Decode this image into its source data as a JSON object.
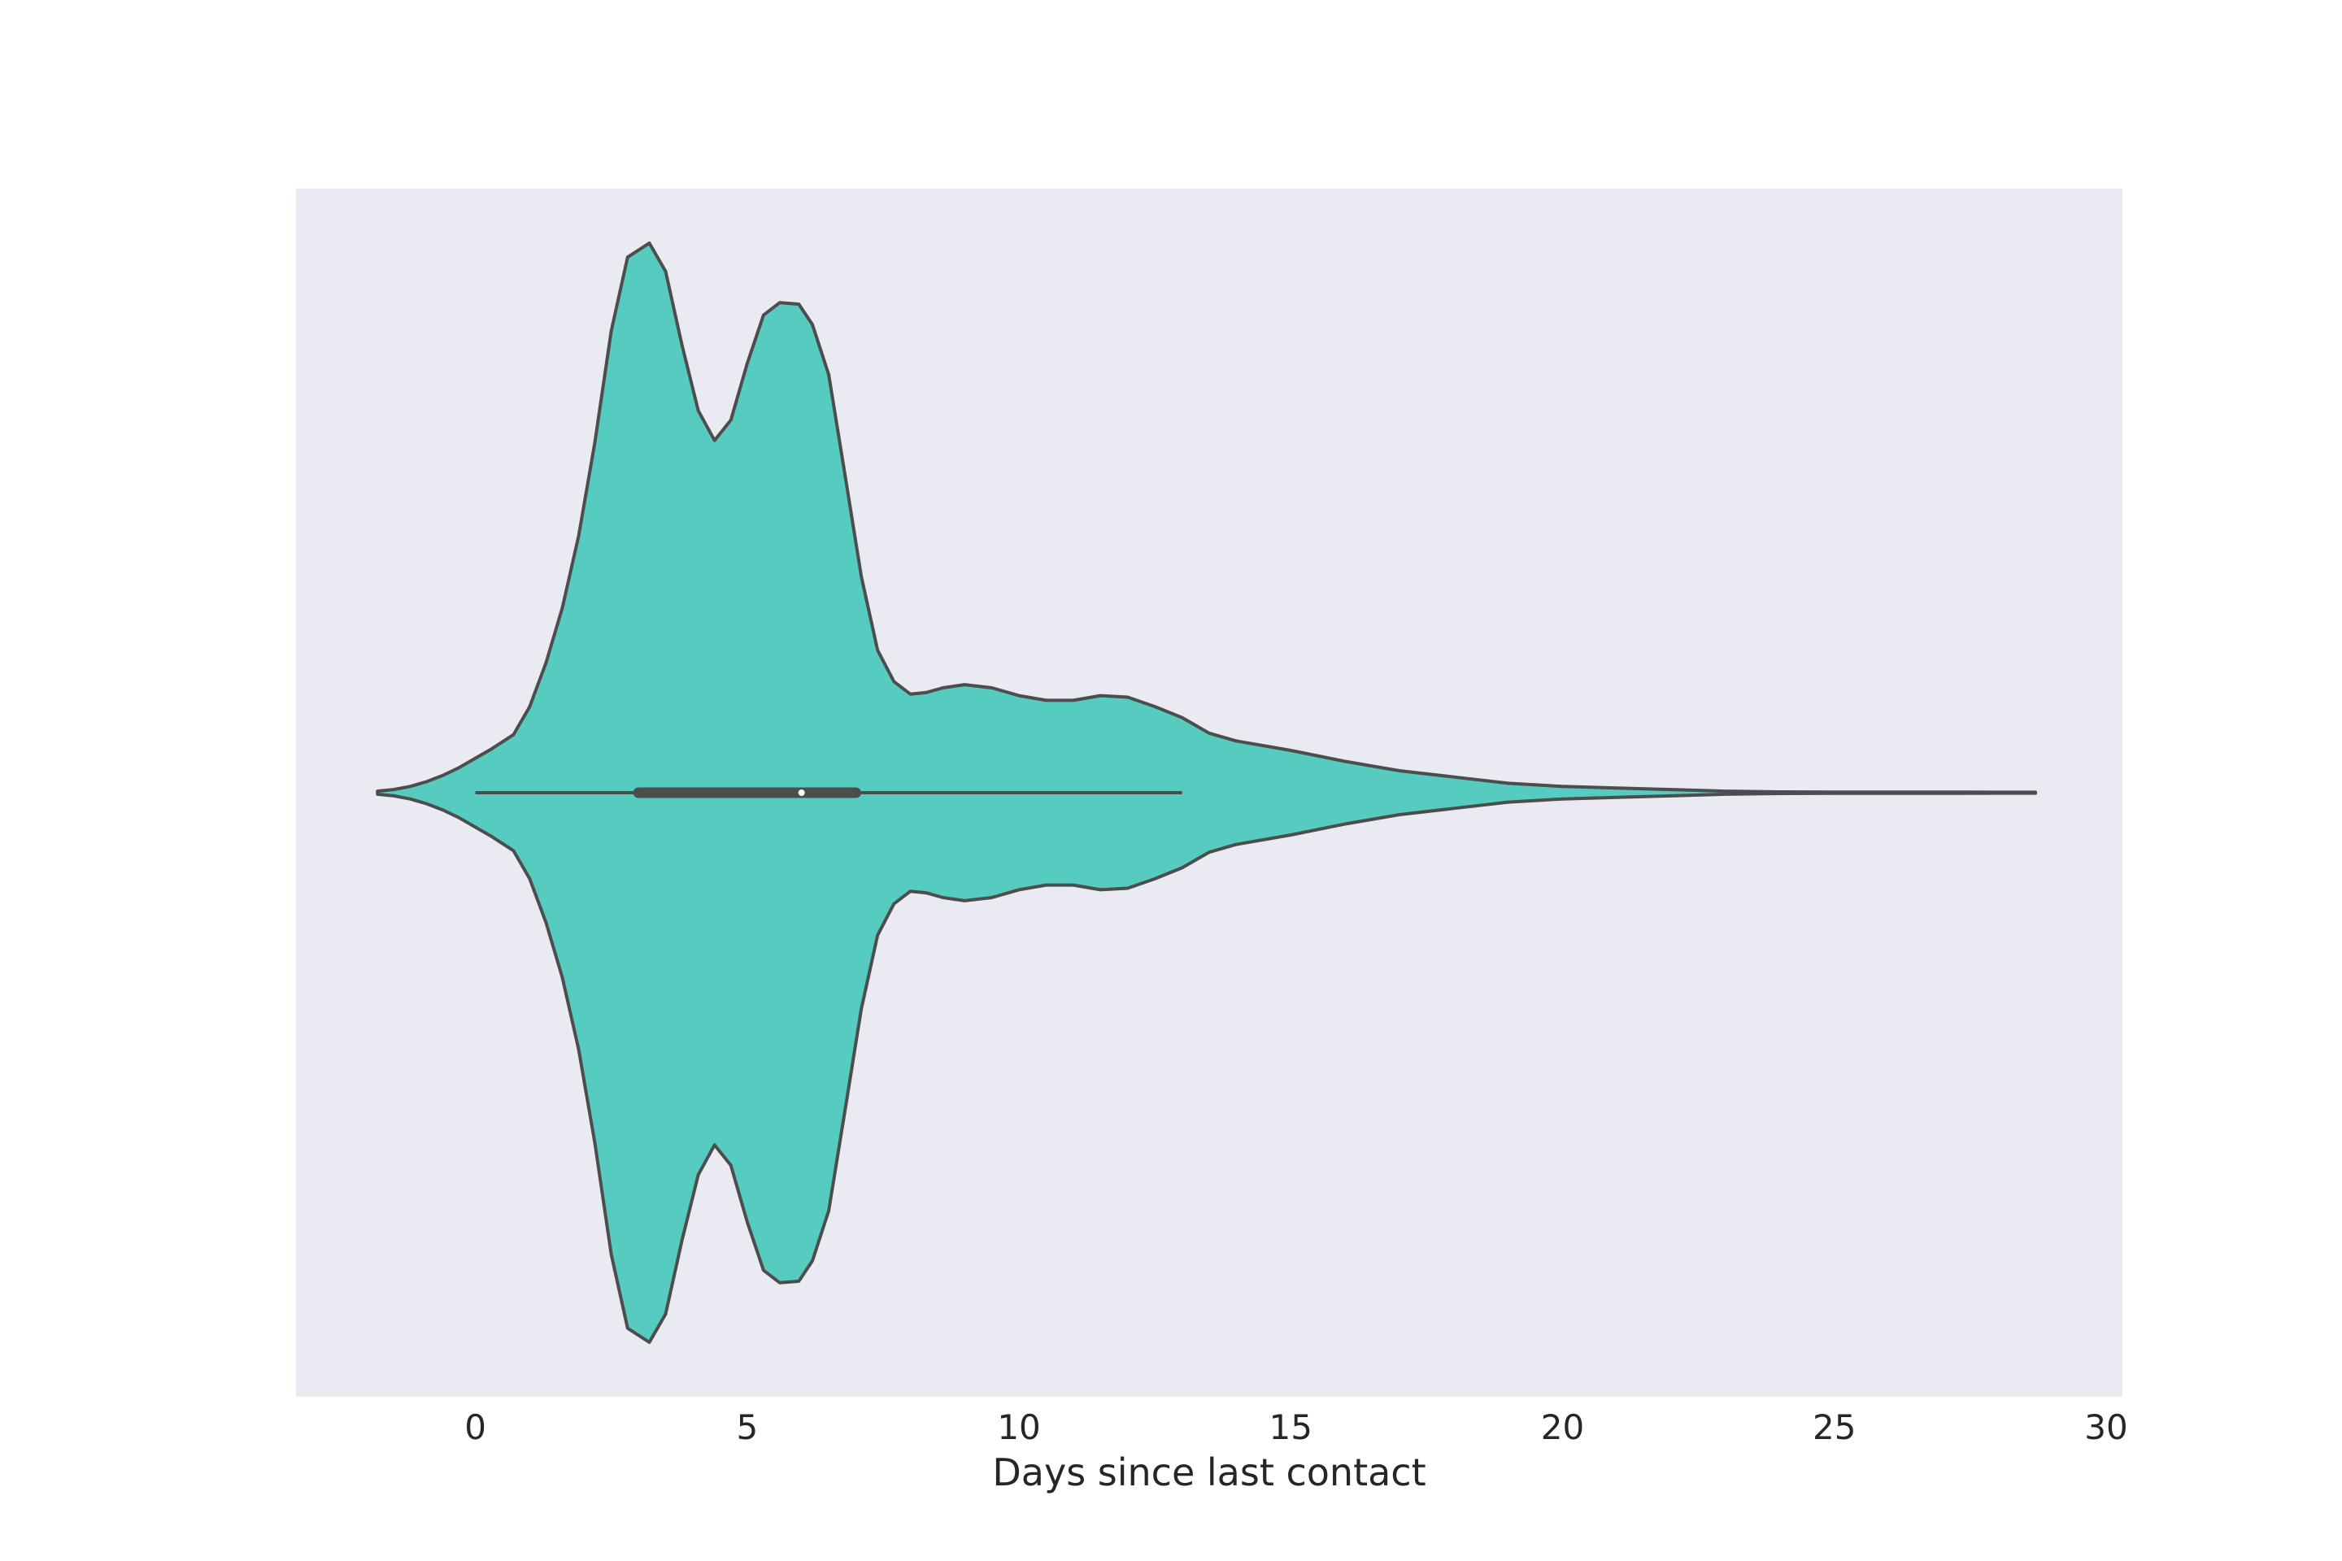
{
  "chart_data": {
    "type": "violin",
    "title": "",
    "xlabel": "Days since last contact",
    "ylabel": "",
    "xlim": [
      -3.3,
      30.3
    ],
    "xticks": [
      0,
      5,
      10,
      15,
      20,
      25,
      30
    ],
    "grid": false,
    "orientation": "horizontal",
    "colors": {
      "figure_background": "#ffffff",
      "plot_background": "#eaeaf2",
      "violin_fill": "#56ccc1",
      "violin_edge": "#4d4d4d",
      "box": "#4d4d4d",
      "median_marker": "#ffffff"
    },
    "density_profile": {
      "x": [
        -1.8,
        -1.5,
        -1.2,
        -0.9,
        -0.6,
        -0.3,
        0,
        0.3,
        0.7,
        1.0,
        1.3,
        1.6,
        1.9,
        2.2,
        2.5,
        2.8,
        3.2,
        3.5,
        3.8,
        4.1,
        4.4,
        4.7,
        5.0,
        5.3,
        5.6,
        5.95,
        6.2,
        6.5,
        6.8,
        7.1,
        7.4,
        7.7,
        8.0,
        8.3,
        8.6,
        9.0,
        9.5,
        10.0,
        10.5,
        11.0,
        11.5,
        12.0,
        12.5,
        13.0,
        13.5,
        14.0,
        15.0,
        16.0,
        17.0,
        18.0,
        19.0,
        20.0,
        21.0,
        22.0,
        23.0,
        24.0,
        25.0,
        26.0,
        27.0,
        28.0,
        28.7
      ],
      "half_width": [
        0.01,
        0.02,
        0.04,
        0.07,
        0.11,
        0.16,
        0.22,
        0.28,
        0.37,
        0.55,
        0.83,
        1.18,
        1.64,
        2.24,
        2.95,
        3.42,
        3.51,
        3.33,
        2.86,
        2.44,
        2.25,
        2.38,
        2.74,
        3.05,
        3.13,
        3.12,
        2.99,
        2.67,
        2.03,
        1.38,
        0.91,
        0.71,
        0.63,
        0.64,
        0.67,
        0.69,
        0.67,
        0.62,
        0.59,
        0.59,
        0.62,
        0.61,
        0.55,
        0.48,
        0.38,
        0.33,
        0.27,
        0.2,
        0.14,
        0.1,
        0.06,
        0.04,
        0.03,
        0.02,
        0.01,
        0.005,
        0.004,
        0.004,
        0.004,
        0.003,
        0.003
      ],
      "relative_width_note_unit": "relative density (max = 3.51)"
    },
    "box": {
      "whisker_low": 0,
      "q1": 3,
      "median": 6,
      "q3": 7,
      "whisker_high": 13
    }
  }
}
